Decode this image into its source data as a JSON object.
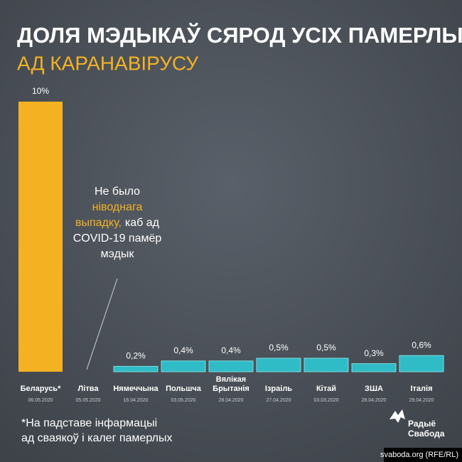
{
  "chart_data": {
    "type": "bar",
    "title": "ДОЛЯ МЭДЫКАЎ СЯРОД УСІХ ПАМЕРЛЫХ",
    "subtitle": "АД КАРАНАВІРУСУ",
    "categories": [
      "Беларусь*",
      "Літва",
      "Нямеччына",
      "Польшча",
      "Вялікая Брытанія",
      "Ізраіль",
      "Кітай",
      "ЗША",
      "Італія"
    ],
    "dates": [
      "06.05.2020",
      "05.05.2020",
      "16.04.2020",
      "03.05.2020",
      "28.04.2020",
      "27.04.2020",
      "03.03.2020",
      "28.04.2020",
      "29.04.2020"
    ],
    "values": [
      10,
      0,
      0.2,
      0.4,
      0.4,
      0.5,
      0.5,
      0.3,
      0.6
    ],
    "value_labels": [
      "10%",
      null,
      "0,2%",
      "0,4%",
      "0,4%",
      "0,5%",
      "0,5%",
      "0,3%",
      "0,6%"
    ],
    "colors": [
      "#f4b223",
      "#2fbcc7",
      "#2fbcc7",
      "#2fbcc7",
      "#2fbcc7",
      "#2fbcc7",
      "#2fbcc7",
      "#2fbcc7",
      "#2fbcc7"
    ],
    "ylim": [
      0,
      10
    ],
    "annotation": [
      [
        {
          "text": "Не было"
        }
      ],
      [
        {
          "text": "ніводнага",
          "highlight": true
        }
      ],
      [
        {
          "text": "выпадку,",
          "highlight": true
        },
        {
          "text": "каб ад"
        }
      ],
      [
        {
          "text": "COVID-19 памёр"
        }
      ],
      [
        {
          "text": "мэдык"
        }
      ]
    ],
    "footnote": [
      "*На падставе інфармацыі",
      "ад сваякоў і калег памерлых"
    ],
    "logo": [
      "Радыё",
      "Свабода"
    ],
    "source": "svaboda.org (RFE/RL)"
  }
}
